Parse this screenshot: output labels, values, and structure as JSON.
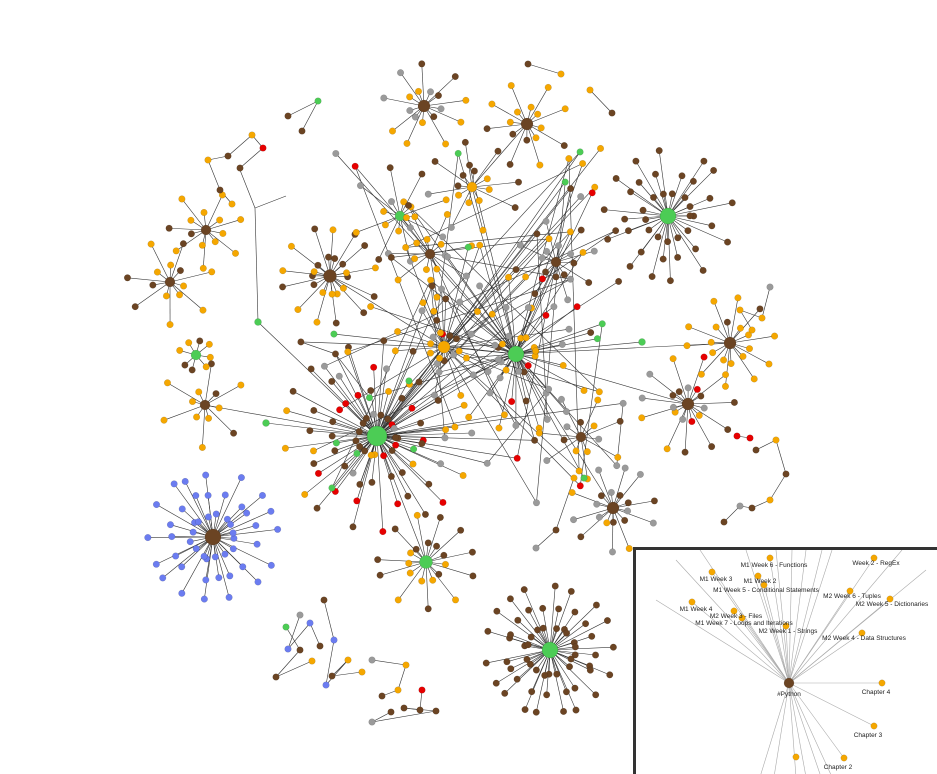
{
  "colors": {
    "brown": "#6b4423",
    "green": "#4ccc55",
    "orange": "#f5a700",
    "gray": "#9a9a9a",
    "red": "#e60000",
    "blue": "#6b7cf0",
    "edge": "#333333",
    "inset_edge": "#aaaaaa",
    "inset_border": "#333333"
  },
  "inset": {
    "hub_label": "#Python",
    "labels": [
      "M1 Week 6 - Functions",
      "Week 2 - RegEx",
      "M1 Week 3",
      "M1 Week 2",
      "M1 Week 5 - Conditional Statements",
      "M2 Week 6 - Tuples",
      "M2 Week 5 - Dictionaries",
      "M1 Week 4",
      "M2 Week 3 - Files",
      "M1 Week 7 - Loops and Iterations",
      "M2 Week 1 - Strings",
      "M2 Week 4 - Data Structures",
      "Chapter 4",
      "Chapter 3",
      "Chapter 2"
    ]
  }
}
